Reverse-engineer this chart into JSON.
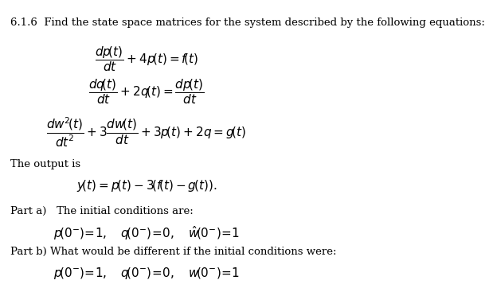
{
  "background_color": "#ffffff",
  "title_line": "6.1.6  Find the state space matrices for the system described by the following equations:",
  "eq1_num": "$\\dfrac{dp\\left(t\\right)}{dt}+4p\\left(t\\right)=f\\left(t\\right)$",
  "eq2_num": "$\\dfrac{dq\\left(t\\right)}{dt}+2q\\left(t\\right)=\\dfrac{dp\\left(t\\right)}{dt}$",
  "eq3_num": "$\\dfrac{dw^{2}\\left(t\\right)}{dt^{2}}+3\\dfrac{dw\\left(t\\right)}{dt}+3p\\left(t\\right)+2q=g\\left(t\\right)$",
  "output_label": "The output is",
  "output_eq": "$y\\left(t\\right)=p\\left(t\\right)-3\\!\\left(f\\left(t\\right)-g\\left(t\\right)\\right).$",
  "parta_label": "Part a)   The initial conditions are:",
  "parta_eq": "$p\\!\\left(0^{-}\\right)\\!=\\!1,\\quad q\\!\\left(0^{-}\\right)\\!=\\!0,\\quad \\tilde{w}\\!\\left(0^{-}\\right)\\!=\\!1$",
  "partb_label": "Part b) What would be different if the initial conditions were:",
  "partb_eq": "$p\\!\\left(0^{-}\\right)\\!=\\!1,\\quad q\\!\\left(0^{-}\\right)\\!=\\!0,\\quad w\\!\\left(0^{-}\\right)\\!=\\!1$",
  "font_size_title": 9.5,
  "font_size_body": 9.5,
  "font_size_eq": 11
}
